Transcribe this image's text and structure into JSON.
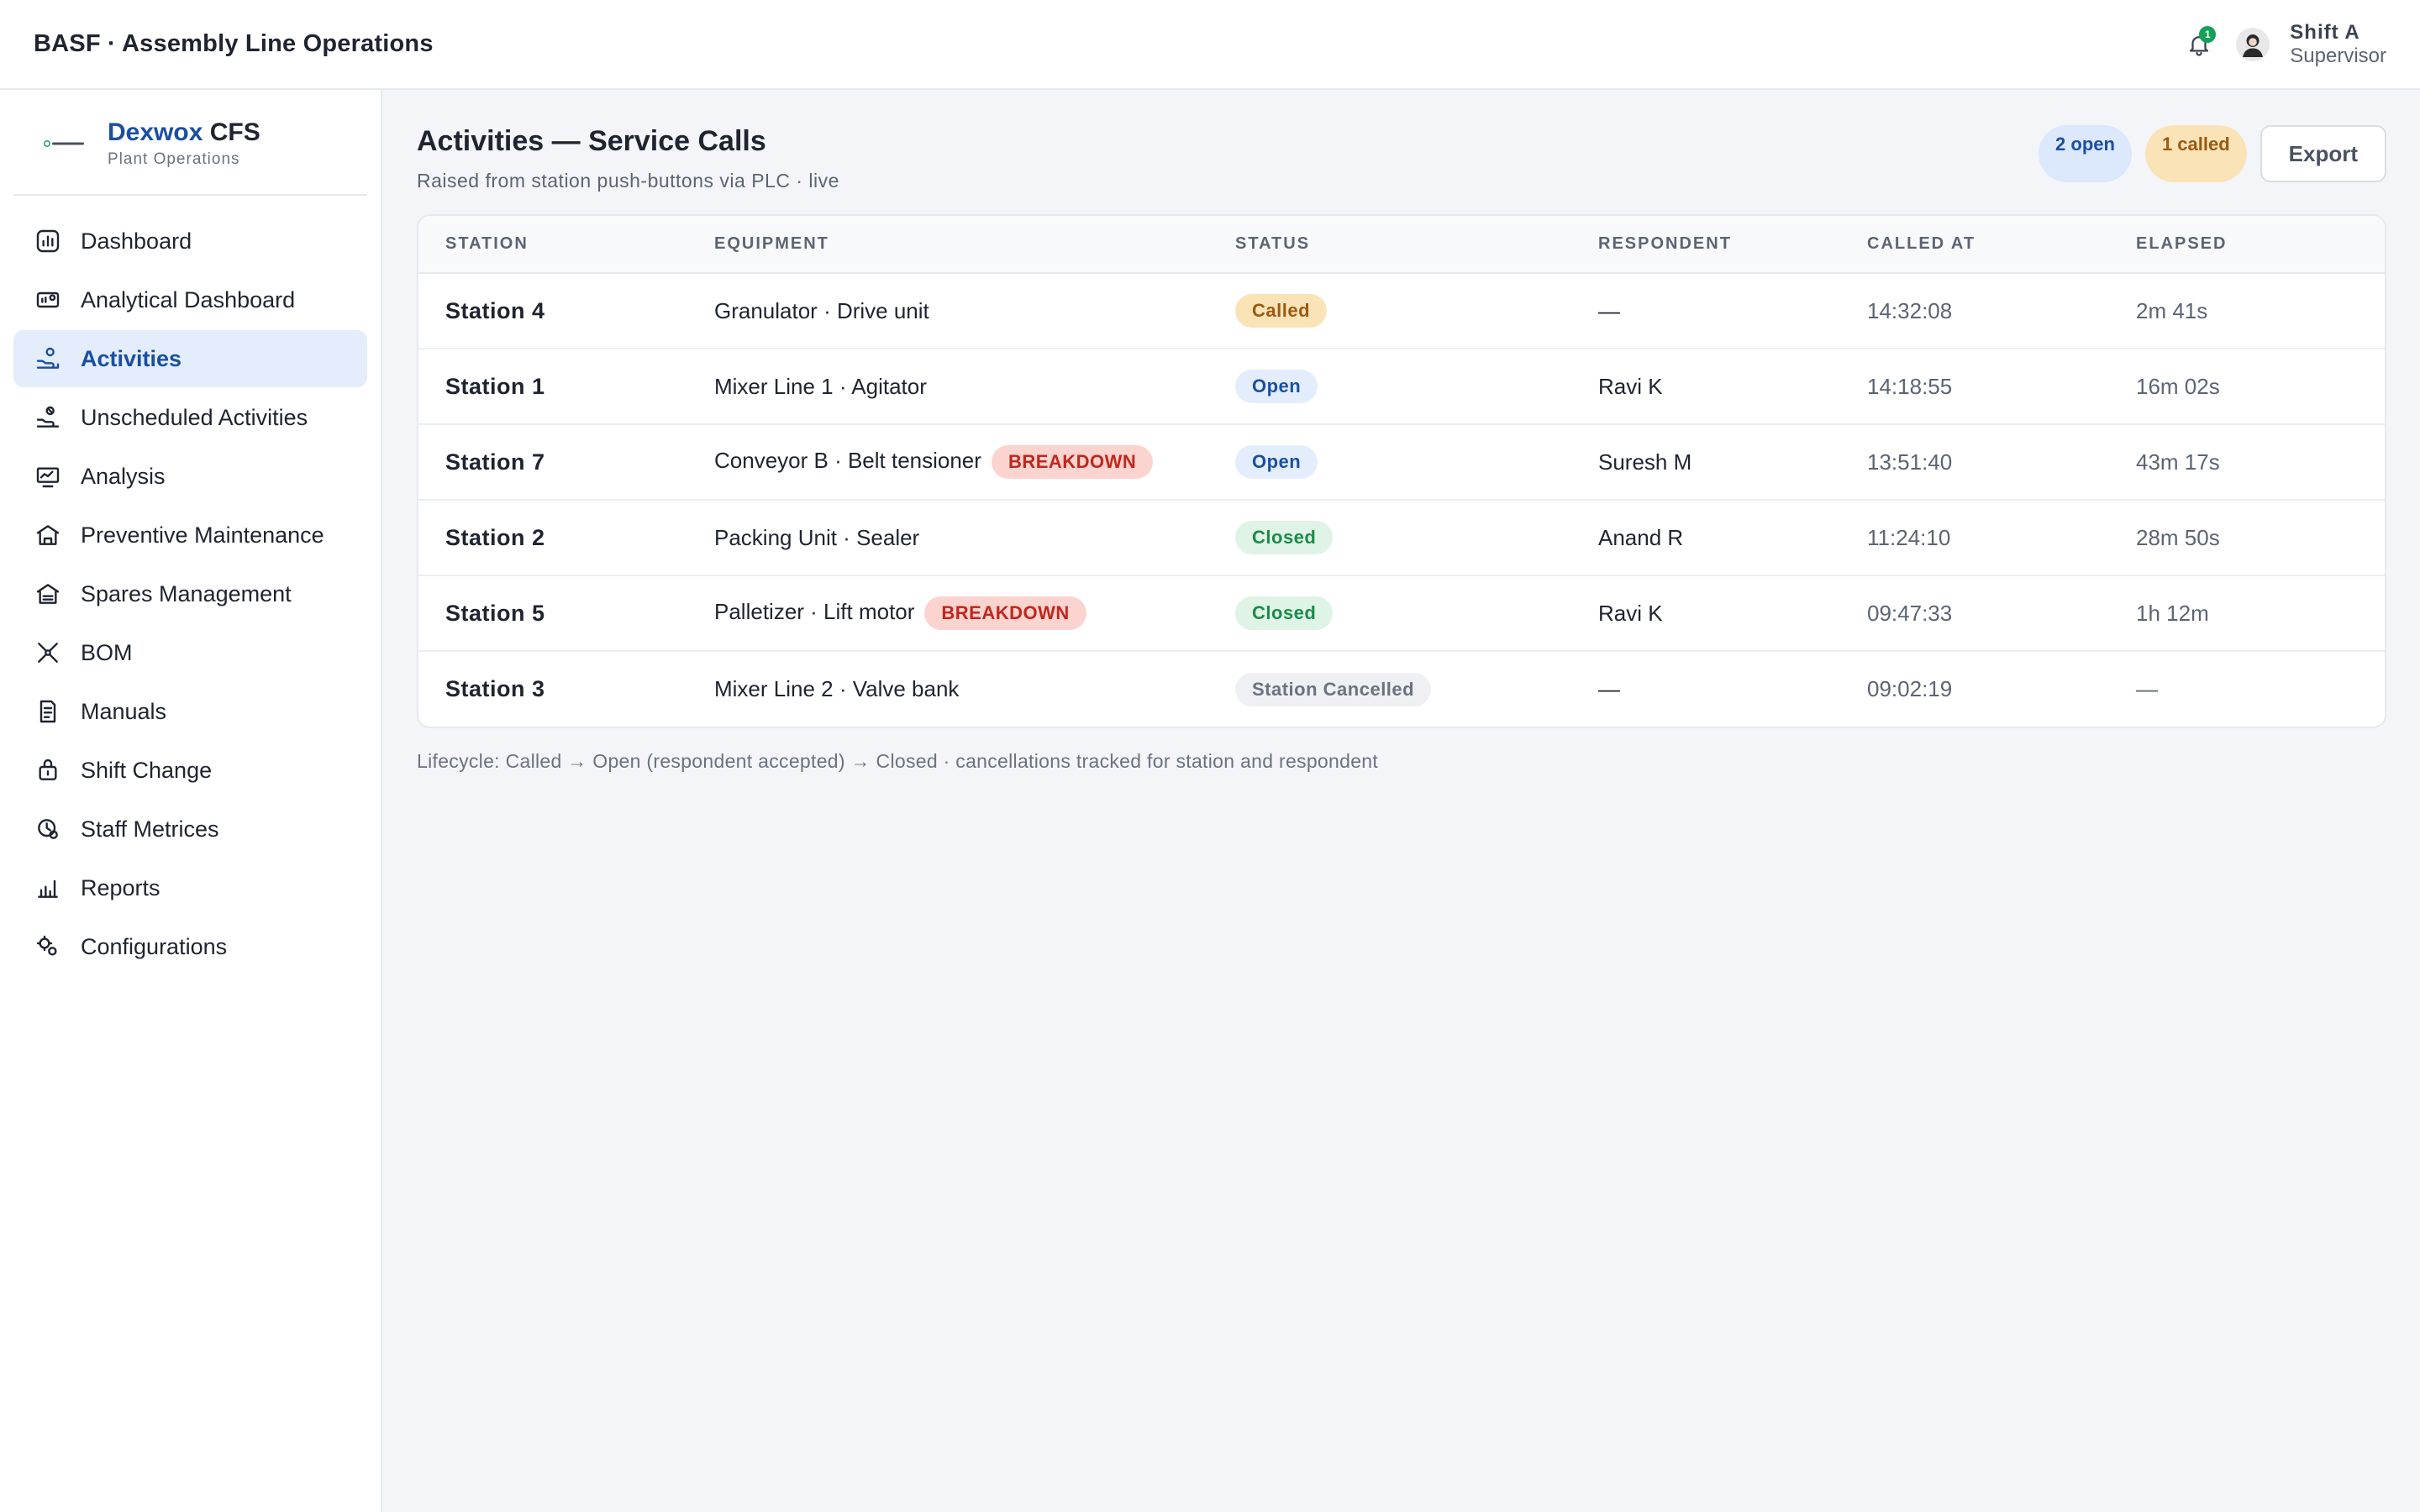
{
  "topbar": {
    "app_title": "BASF · Assembly Line Operations",
    "notif_count": "1",
    "shift": "Shift A",
    "role": "Supervisor"
  },
  "brand": {
    "name_a": "Dexwox",
    "name_b": "CFS",
    "subtitle": "Plant Operations"
  },
  "sidebar": {
    "items": [
      {
        "label": "Dashboard",
        "icon": "dashboard-icon"
      },
      {
        "label": "Analytical Dashboard",
        "icon": "analytics-icon"
      },
      {
        "label": "Activities",
        "icon": "activities-icon",
        "active": true
      },
      {
        "label": "Unscheduled Activities",
        "icon": "unscheduled-icon"
      },
      {
        "label": "Analysis",
        "icon": "analysis-icon"
      },
      {
        "label": "Preventive Maintenance",
        "icon": "maintenance-icon"
      },
      {
        "label": "Spares Management",
        "icon": "warehouse-icon"
      },
      {
        "label": "BOM",
        "icon": "tools-icon"
      },
      {
        "label": "Manuals",
        "icon": "manual-icon"
      },
      {
        "label": "Shift Change",
        "icon": "shift-icon"
      },
      {
        "label": "Staff Metrices",
        "icon": "staff-icon"
      },
      {
        "label": "Reports",
        "icon": "reports-icon"
      },
      {
        "label": "Configurations",
        "icon": "config-icon"
      }
    ]
  },
  "main": {
    "title": "Activities — Service Calls",
    "subtitle": "Raised from station push-buttons via PLC · live",
    "open_pill": "2 open",
    "called_pill": "1 called",
    "export_label": "Export",
    "columns": [
      "STATION",
      "EQUIPMENT",
      "STATUS",
      "RESPONDENT",
      "CALLED AT",
      "ELAPSED"
    ],
    "rows": [
      {
        "station": "Station 4",
        "equipment": "Granulator · Drive unit",
        "tag": "",
        "status": "Called",
        "status_kind": "called",
        "respondent": "—",
        "called_at": "14:32:08",
        "elapsed": "2m 41s"
      },
      {
        "station": "Station 1",
        "equipment": "Mixer Line 1 · Agitator",
        "tag": "",
        "status": "Open",
        "status_kind": "open",
        "respondent": "Ravi K",
        "called_at": "14:18:55",
        "elapsed": "16m 02s"
      },
      {
        "station": "Station 7",
        "equipment": "Conveyor B · Belt tensioner",
        "tag": "BREAKDOWN",
        "status": "Open",
        "status_kind": "open",
        "respondent": "Suresh M",
        "called_at": "13:51:40",
        "elapsed": "43m 17s"
      },
      {
        "station": "Station 2",
        "equipment": "Packing Unit · Sealer",
        "tag": "",
        "status": "Closed",
        "status_kind": "closed",
        "respondent": "Anand R",
        "called_at": "11:24:10",
        "elapsed": "28m 50s"
      },
      {
        "station": "Station 5",
        "equipment": "Palletizer · Lift motor",
        "tag": "BREAKDOWN",
        "status": "Closed",
        "status_kind": "closed",
        "respondent": "Ravi K",
        "called_at": "09:47:33",
        "elapsed": "1h 12m"
      },
      {
        "station": "Station 3",
        "equipment": "Mixer Line 2 · Valve bank",
        "tag": "",
        "status": "Station Cancelled",
        "status_kind": "cancelled",
        "respondent": "—",
        "called_at": "09:02:19",
        "elapsed": "—"
      }
    ],
    "footnote": "Lifecycle: Called → Open (respondent accepted) → Closed · cancellations tracked for station and respondent"
  },
  "colors": {
    "accent": "#1a4fa0",
    "called": "#9a5a10",
    "closed": "#1d8a4a",
    "breakdown": "#c0271d"
  }
}
